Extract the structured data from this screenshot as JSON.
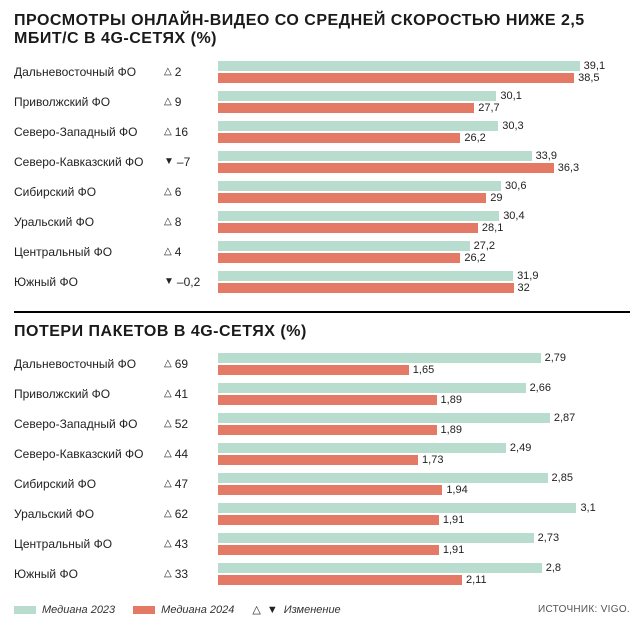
{
  "colors": {
    "median2023": "#b8ddcf",
    "median2024": "#e47a66",
    "text": "#1a1a1a",
    "bg": "#ffffff"
  },
  "chart1": {
    "type": "bar",
    "title": "ПРОСМОТРЫ ОНЛАЙН-ВИДЕО СО СРЕДНЕЙ СКОРОСТЬЮ НИЖЕ 2,5 МБИТ/С В 4G-СЕТЯХ (%)",
    "xmax": 40,
    "value_decimals": 1,
    "rows": [
      {
        "label": "Дальневосточный ФО",
        "delta_dir": "up",
        "delta": "2",
        "v2023": 39.1,
        "v2024": 38.5
      },
      {
        "label": "Приволжский ФО",
        "delta_dir": "up",
        "delta": "9",
        "v2023": 30.1,
        "v2024": 27.7
      },
      {
        "label": "Северо-Западный ФО",
        "delta_dir": "up",
        "delta": "16",
        "v2023": 30.3,
        "v2024": 26.2
      },
      {
        "label": "Северо-Кавказский ФО",
        "delta_dir": "down",
        "delta": "–7",
        "v2023": 33.9,
        "v2024": 36.3
      },
      {
        "label": "Сибирский ФО",
        "delta_dir": "up",
        "delta": "6",
        "v2023": 30.6,
        "v2024": 29.0
      },
      {
        "label": "Уральский ФО",
        "delta_dir": "up",
        "delta": "8",
        "v2023": 30.4,
        "v2024": 28.1
      },
      {
        "label": "Центральный ФО",
        "delta_dir": "up",
        "delta": "4",
        "v2023": 27.2,
        "v2024": 26.2
      },
      {
        "label": "Южный ФО",
        "delta_dir": "down",
        "delta": "–0,2",
        "v2023": 31.9,
        "v2024": 31.95
      }
    ]
  },
  "chart2": {
    "type": "bar",
    "title": "ПОТЕРИ ПАКЕТОВ В 4G-СЕТЯХ (%)",
    "xmax": 3.2,
    "value_decimals": 2,
    "rows": [
      {
        "label": "Дальневосточный ФО",
        "delta_dir": "up",
        "delta": "69",
        "v2023": 2.79,
        "v2024": 1.65
      },
      {
        "label": "Приволжский ФО",
        "delta_dir": "up",
        "delta": "41",
        "v2023": 2.66,
        "v2024": 1.89
      },
      {
        "label": "Северо-Западный ФО",
        "delta_dir": "up",
        "delta": "52",
        "v2023": 2.87,
        "v2024": 1.89
      },
      {
        "label": "Северо-Кавказский ФО",
        "delta_dir": "up",
        "delta": "44",
        "v2023": 2.49,
        "v2024": 1.73
      },
      {
        "label": "Сибирский ФО",
        "delta_dir": "up",
        "delta": "47",
        "v2023": 2.85,
        "v2024": 1.94
      },
      {
        "label": "Уральский ФО",
        "delta_dir": "up",
        "delta": "62",
        "v2023": 3.1,
        "v2024": 1.91
      },
      {
        "label": "Центральный ФО",
        "delta_dir": "up",
        "delta": "43",
        "v2023": 2.73,
        "v2024": 1.91
      },
      {
        "label": "Южный ФО",
        "delta_dir": "up",
        "delta": "33",
        "v2023": 2.8,
        "v2024": 2.11
      }
    ]
  },
  "legend": {
    "median2023": "Медиана 2023",
    "median2024": "Медиана 2024",
    "delta": "Изменение",
    "source": "ИСТОЧНИК: VIGO."
  }
}
